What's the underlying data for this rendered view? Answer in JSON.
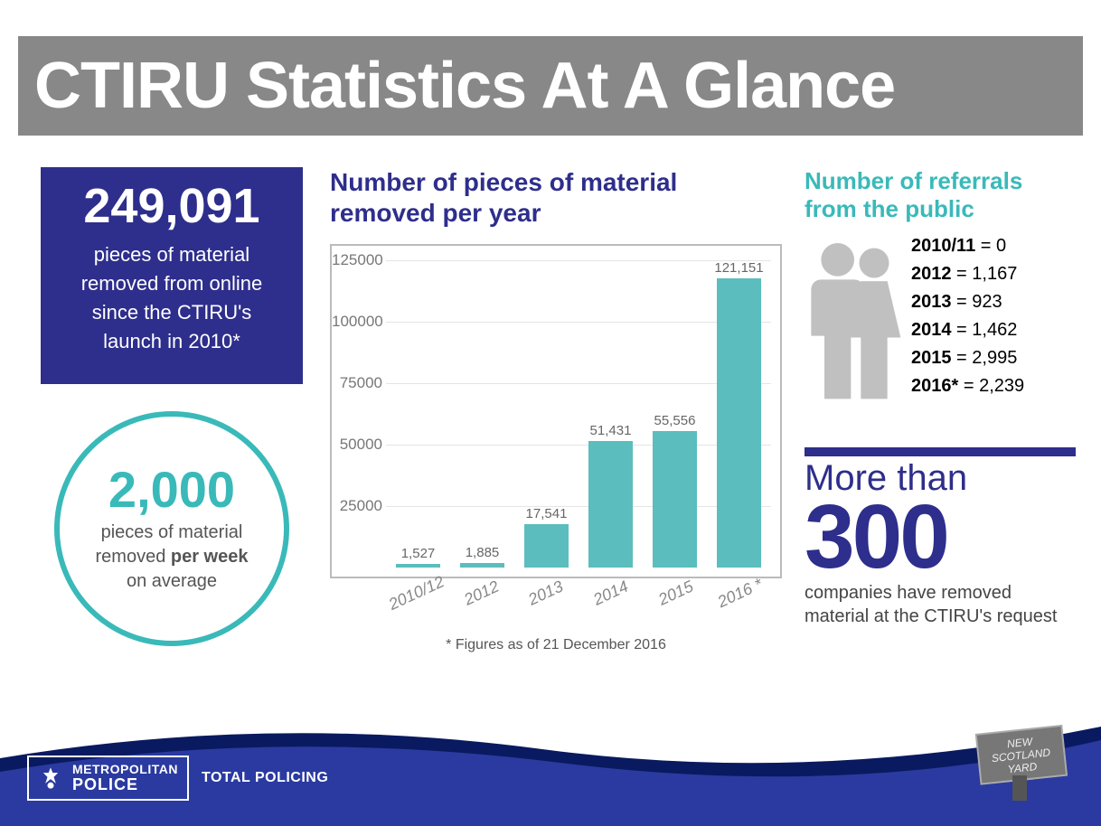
{
  "title": "CTIRU Statistics At A Glance",
  "title_bg": "#888888",
  "title_color": "#ffffff",
  "stat_box": {
    "bg": "#2e2e8c",
    "number": "249,091",
    "desc_l1": "pieces of material",
    "desc_l2": "removed from online",
    "desc_l3": "since the CTIRU's",
    "desc_l4": "launch in 2010*"
  },
  "circle": {
    "border": "#3ab9b9",
    "number": "2,000",
    "desc_l1": "pieces of material",
    "desc_l2_a": "removed ",
    "desc_l2_b": "per week",
    "desc_l3": "on average"
  },
  "chart": {
    "type": "bar",
    "title": "Number of pieces of material removed per year",
    "title_color": "#2e2e8c",
    "bar_color": "#5bbdbd",
    "grid_color": "#e5e5e5",
    "border_color": "#bbbbbb",
    "ymax": 125000,
    "ytick_step": 25000,
    "yticks": [
      "125000",
      "100000",
      "75000",
      "50000",
      "25000"
    ],
    "categories": [
      "2010/12",
      "2012",
      "2013",
      "2014",
      "2015",
      "2016"
    ],
    "last_cat_asterisk": "*",
    "values": [
      1527,
      1885,
      17541,
      51431,
      55556,
      121151
    ],
    "value_labels": [
      "1,527",
      "1,885",
      "17,541",
      "51,431",
      "55,556",
      "121,151"
    ],
    "x_rotation_deg": -25,
    "footnote": "* Figures as of 21 December 2016"
  },
  "referrals": {
    "title": "Number of referrals from the public",
    "title_color": "#3ab9b9",
    "icon_color": "#c0c0c0",
    "rows": [
      {
        "year": "2010/11",
        "value": "0"
      },
      {
        "year": "2012",
        "value": "1,167"
      },
      {
        "year": "2013",
        "value": "923"
      },
      {
        "year": "2014",
        "value": "1,462"
      },
      {
        "year": "2015",
        "value": "2,995"
      },
      {
        "year": "2016*",
        "value": "2,239"
      }
    ]
  },
  "companies": {
    "border_color": "#2e2e8c",
    "line1": "More than",
    "line2": "300",
    "desc": "companies have removed material at the CTIRU's request"
  },
  "footer": {
    "wave_dark": "#0a1a60",
    "wave_main": "#2a3aa0",
    "met_line1": "METROPOLITAN",
    "met_line2": "POLICE",
    "total": "TOTAL POLICING",
    "nsy_l1": "NEW",
    "nsy_l2": "SCOTLAND",
    "nsy_l3": "YARD",
    "nsy_fill": "#777777"
  }
}
